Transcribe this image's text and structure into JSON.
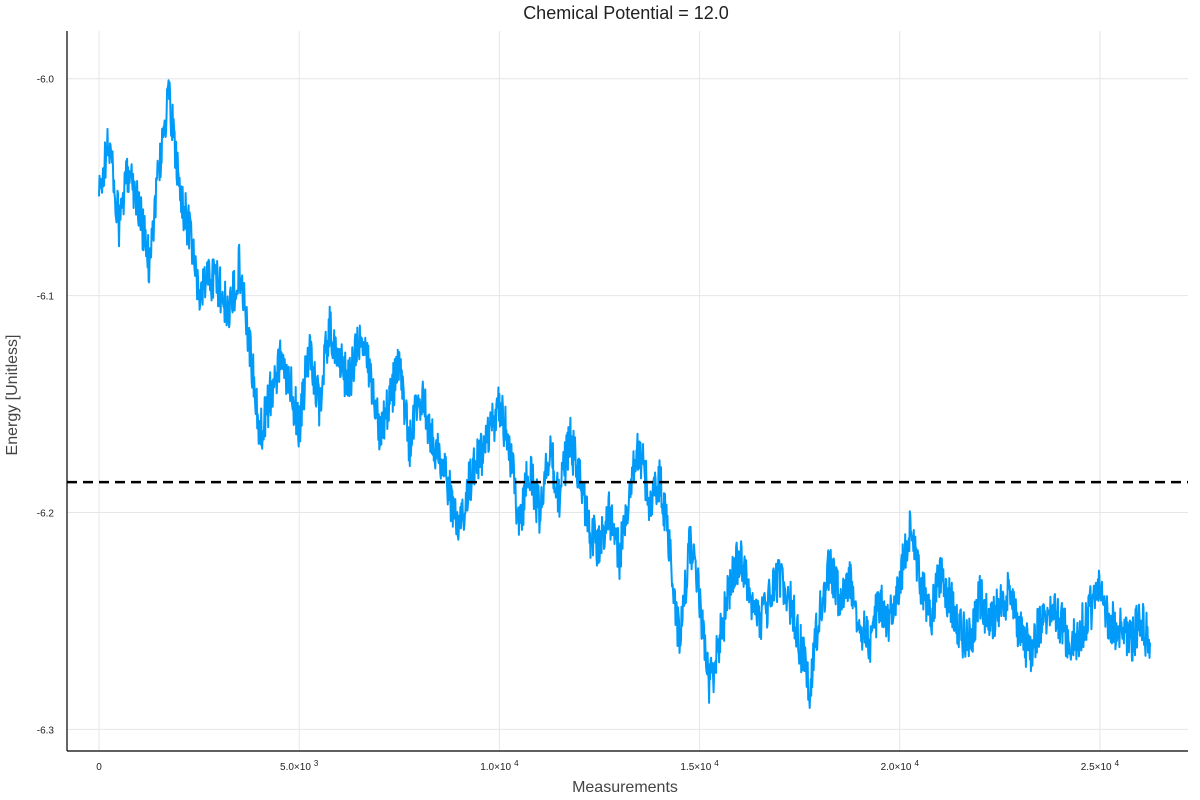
{
  "chart_data": {
    "type": "line",
    "title": "Chemical Potential = 12.0",
    "xlabel": "Measurements",
    "ylabel": "Energy [Unitless]",
    "xlim": [
      -800,
      27200
    ],
    "ylim": [
      -6.31,
      -5.978
    ],
    "grid": true,
    "legend": "none",
    "x_ticks": [
      {
        "value": 0,
        "mantissa": "0",
        "exponent": ""
      },
      {
        "value": 5000,
        "mantissa": "5.0×10",
        "exponent": "3"
      },
      {
        "value": 10000,
        "mantissa": "1.0×10",
        "exponent": "4"
      },
      {
        "value": 15000,
        "mantissa": "1.5×10",
        "exponent": "4"
      },
      {
        "value": 20000,
        "mantissa": "2.0×10",
        "exponent": "4"
      },
      {
        "value": 25000,
        "mantissa": "2.5×10",
        "exponent": "4"
      }
    ],
    "y_ticks": [
      {
        "value": -6.0,
        "label": "-6.0"
      },
      {
        "value": -6.1,
        "label": "-6.1"
      },
      {
        "value": -6.2,
        "label": "-6.2"
      },
      {
        "value": -6.3,
        "label": "-6.3"
      }
    ],
    "reference_line": {
      "y": -6.186,
      "style": "dashed",
      "color": "#000000"
    },
    "series": [
      {
        "color": "#009af9",
        "x": [
          0,
          250,
          500,
          750,
          1000,
          1250,
          1500,
          1750,
          2000,
          2250,
          2500,
          2750,
          3000,
          3250,
          3500,
          3750,
          4000,
          4250,
          4500,
          4750,
          5000,
          5250,
          5500,
          5750,
          6000,
          6250,
          6500,
          6750,
          7000,
          7250,
          7500,
          7750,
          8000,
          8250,
          8500,
          8750,
          9000,
          9250,
          9500,
          9750,
          10000,
          10250,
          10500,
          10750,
          11000,
          11250,
          11500,
          11750,
          12000,
          12250,
          12500,
          12750,
          13000,
          13250,
          13500,
          13750,
          14000,
          14250,
          14500,
          14750,
          15000,
          15250,
          15500,
          15750,
          16000,
          16250,
          16500,
          16750,
          17000,
          17250,
          17500,
          17750,
          18000,
          18250,
          18500,
          18750,
          19000,
          19250,
          19500,
          19750,
          20000,
          20250,
          20500,
          20750,
          21000,
          21250,
          21500,
          21750,
          22000,
          22250,
          22500,
          22750,
          23000,
          23250,
          23500,
          23750,
          24000,
          24250,
          24500,
          24750,
          25000,
          25250,
          25500,
          25750,
          26000,
          26250
        ],
        "y": [
          -6.055,
          -6.028,
          -6.068,
          -6.04,
          -6.06,
          -6.085,
          -6.04,
          -6.008,
          -6.05,
          -6.07,
          -6.1,
          -6.09,
          -6.095,
          -6.11,
          -6.085,
          -6.12,
          -6.165,
          -6.148,
          -6.13,
          -6.14,
          -6.16,
          -6.125,
          -6.15,
          -6.115,
          -6.13,
          -6.14,
          -6.12,
          -6.135,
          -6.16,
          -6.15,
          -6.13,
          -6.17,
          -6.145,
          -6.16,
          -6.175,
          -6.19,
          -6.21,
          -6.185,
          -6.175,
          -6.165,
          -6.15,
          -6.17,
          -6.205,
          -6.18,
          -6.2,
          -6.17,
          -6.195,
          -6.165,
          -6.185,
          -6.21,
          -6.215,
          -6.2,
          -6.22,
          -6.19,
          -6.17,
          -6.195,
          -6.185,
          -6.215,
          -6.26,
          -6.215,
          -6.24,
          -6.28,
          -6.26,
          -6.235,
          -6.22,
          -6.24,
          -6.25,
          -6.24,
          -6.23,
          -6.24,
          -6.26,
          -6.28,
          -6.245,
          -6.225,
          -6.24,
          -6.23,
          -6.25,
          -6.26,
          -6.24,
          -6.25,
          -6.23,
          -6.21,
          -6.23,
          -6.25,
          -6.23,
          -6.24,
          -6.255,
          -6.26,
          -6.24,
          -6.25,
          -6.245,
          -6.235,
          -6.255,
          -6.265,
          -6.25,
          -6.245,
          -6.25,
          -6.26,
          -6.255,
          -6.245,
          -6.235,
          -6.25,
          -6.255,
          -6.26,
          -6.25,
          -6.26
        ]
      }
    ]
  }
}
